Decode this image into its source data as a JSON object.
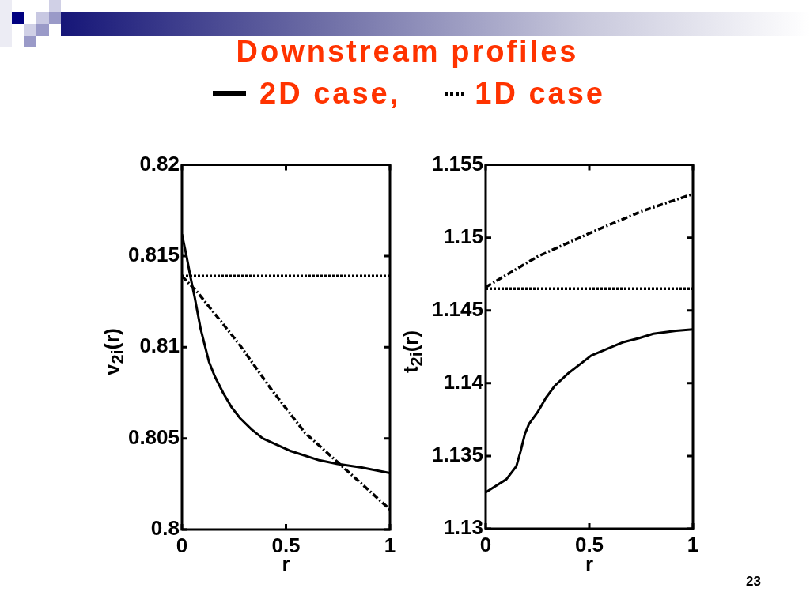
{
  "chart_data": [
    {
      "type": "line",
      "title": "Downstream profiles",
      "legend": "top",
      "xlabel": "r",
      "ylabel": "v$_{2i}$(r)",
      "xlim": [
        0,
        1
      ],
      "xticks": [
        0,
        0.5,
        1
      ],
      "ylim": [
        0.8,
        0.82
      ],
      "yticks": [
        0.8,
        0.805,
        0.81,
        0.815,
        0.82
      ],
      "series": [
        {
          "name": "2D case,",
          "color": "#000000",
          "line_style": "solid",
          "x": [
            0,
            0.022,
            0.042,
            0.062,
            0.09,
            0.13,
            0.158,
            0.198,
            0.239,
            0.28,
            0.334,
            0.388,
            0.524,
            0.66,
            0.748,
            0.864,
            1
          ],
          "values": [
            0.8162,
            0.815,
            0.8138,
            0.8127,
            0.811,
            0.8092,
            0.8084,
            0.8075,
            0.8067,
            0.8061,
            0.8055,
            0.805,
            0.8043,
            0.8038,
            0.8036,
            0.8034,
            0.8031
          ]
        },
        {
          "name": "1D case",
          "color": "#000000",
          "line_style": "dotted",
          "x": [
            0,
            1
          ],
          "values": [
            0.8139,
            0.8139
          ]
        },
        {
          "color": "#000000",
          "line_style": "dashdot",
          "x": [
            0,
            0.076,
            0.273,
            0.429,
            0.592,
            0.748,
            1
          ],
          "values": [
            0.8139,
            0.813,
            0.8102,
            0.8077,
            0.8053,
            0.8037,
            0.8011
          ]
        }
      ]
    },
    {
      "type": "line",
      "xlabel": "r",
      "ylabel": "t$_{2i}$(r)",
      "xlim": [
        0,
        1
      ],
      "xticks": [
        0,
        0.5,
        1
      ],
      "ylim": [
        1.13,
        1.155
      ],
      "yticks": [
        1.13,
        1.135,
        1.14,
        1.145,
        1.15,
        1.155
      ],
      "series": [
        {
          "color": "#000000",
          "line_style": "solid",
          "x": [
            0,
            0.045,
            0.1,
            0.148,
            0.168,
            0.189,
            0.209,
            0.25,
            0.291,
            0.332,
            0.4,
            0.455,
            0.509,
            0.577,
            0.659,
            0.741,
            0.809,
            0.918,
            1
          ],
          "values": [
            1.1325,
            1.1329,
            1.1334,
            1.1343,
            1.1353,
            1.1365,
            1.1372,
            1.138,
            1.139,
            1.1398,
            1.1407,
            1.1413,
            1.1419,
            1.1423,
            1.1428,
            1.1431,
            1.1434,
            1.1436,
            1.1437
          ]
        },
        {
          "color": "#000000",
          "line_style": "dotted",
          "x": [
            0,
            1
          ],
          "values": [
            1.1465,
            1.1465
          ]
        },
        {
          "color": "#000000",
          "line_style": "dashdot",
          "x": [
            0,
            0.25,
            0.5,
            0.75,
            1
          ],
          "values": [
            1.1466,
            1.1487,
            1.1503,
            1.1518,
            1.153
          ]
        }
      ],
      "annotations": [
        "23"
      ]
    }
  ]
}
